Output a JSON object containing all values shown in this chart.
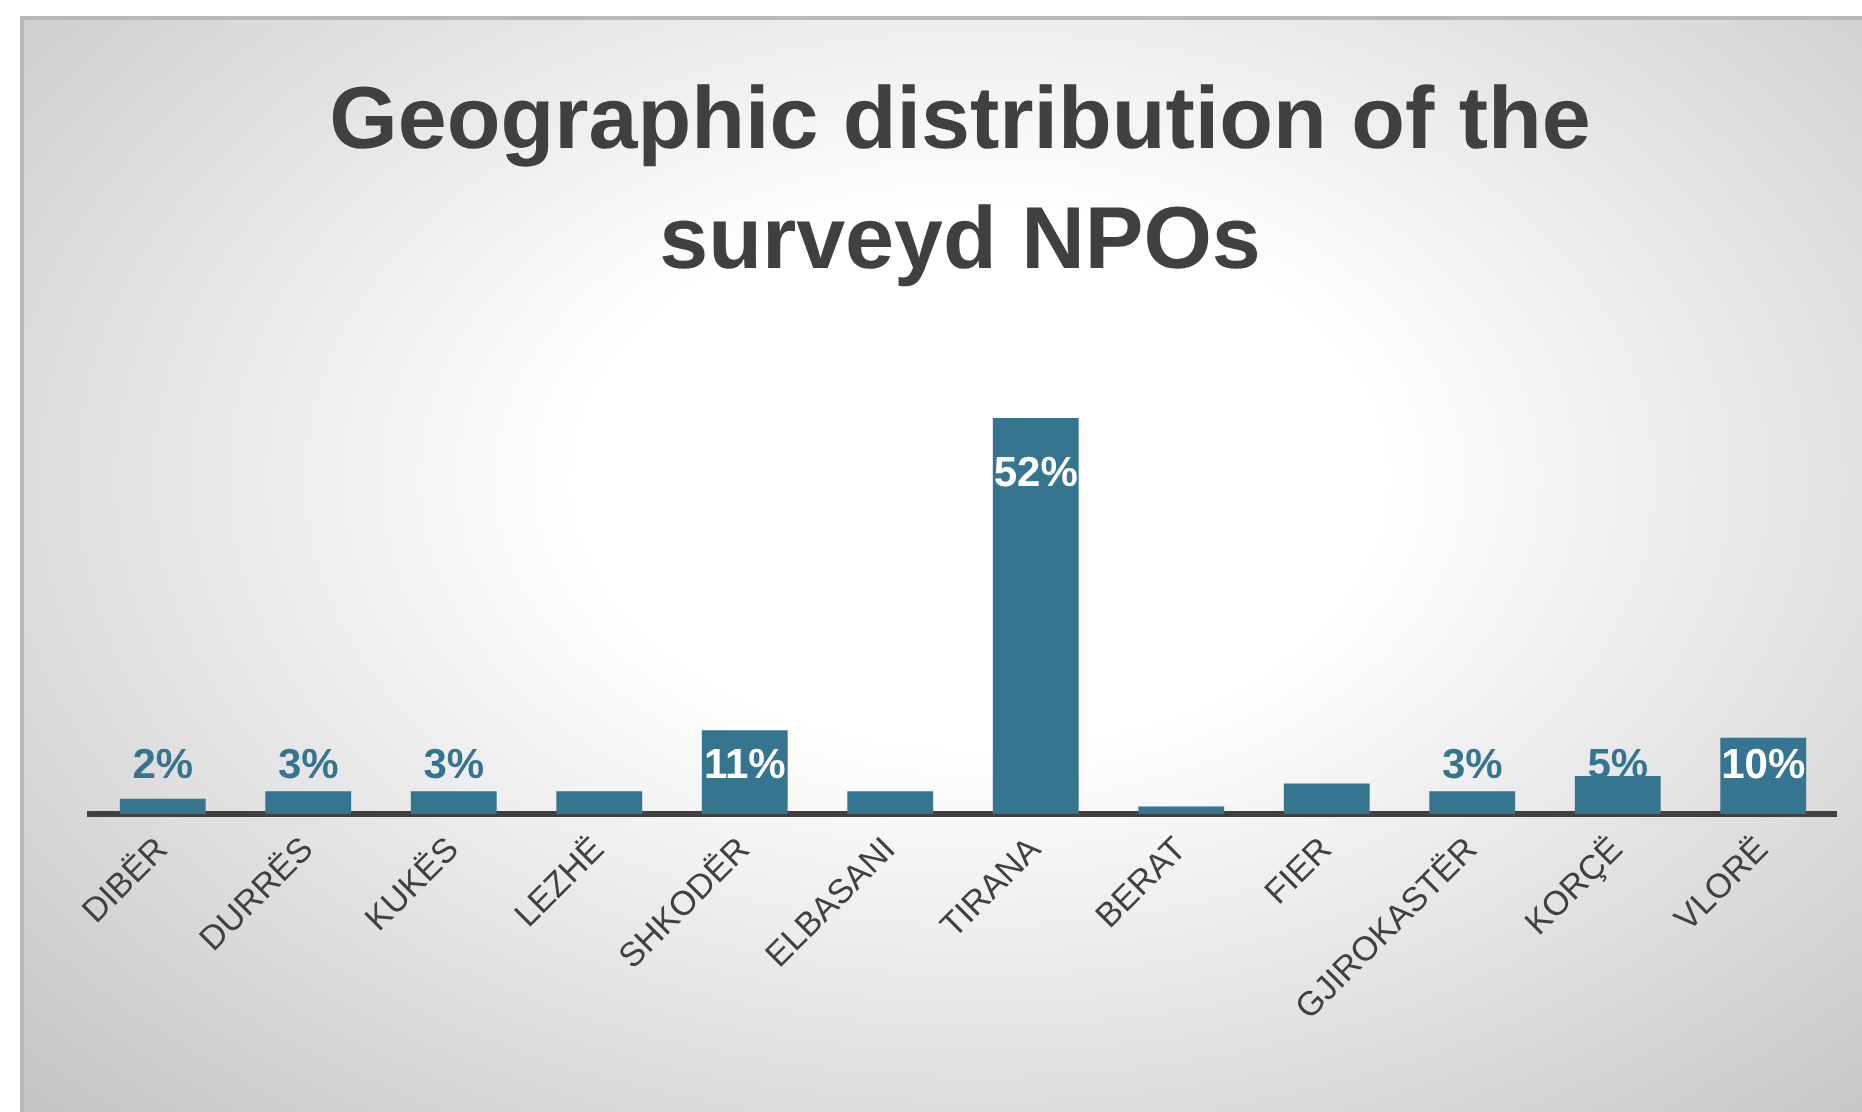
{
  "chart_data": {
    "type": "bar",
    "title": "Geographic distribution of the surveyd NPOs",
    "categories": [
      "DIBËR",
      "DURRËS",
      "KUKËS",
      "LEZHË",
      "SHKODËR",
      "ELBASANI",
      "TIRANA",
      "BERAT",
      "FIER",
      "GJIROKASTËR",
      "KORÇË",
      "VLORË"
    ],
    "values": [
      2,
      3,
      3,
      3,
      11,
      3,
      52,
      1,
      4,
      3,
      5,
      10
    ],
    "value_labels": [
      "2%",
      "3%",
      "3%",
      null,
      "11%",
      null,
      "52%",
      null,
      null,
      "3%",
      "5%",
      "10%"
    ],
    "color": "#36758f"
  }
}
